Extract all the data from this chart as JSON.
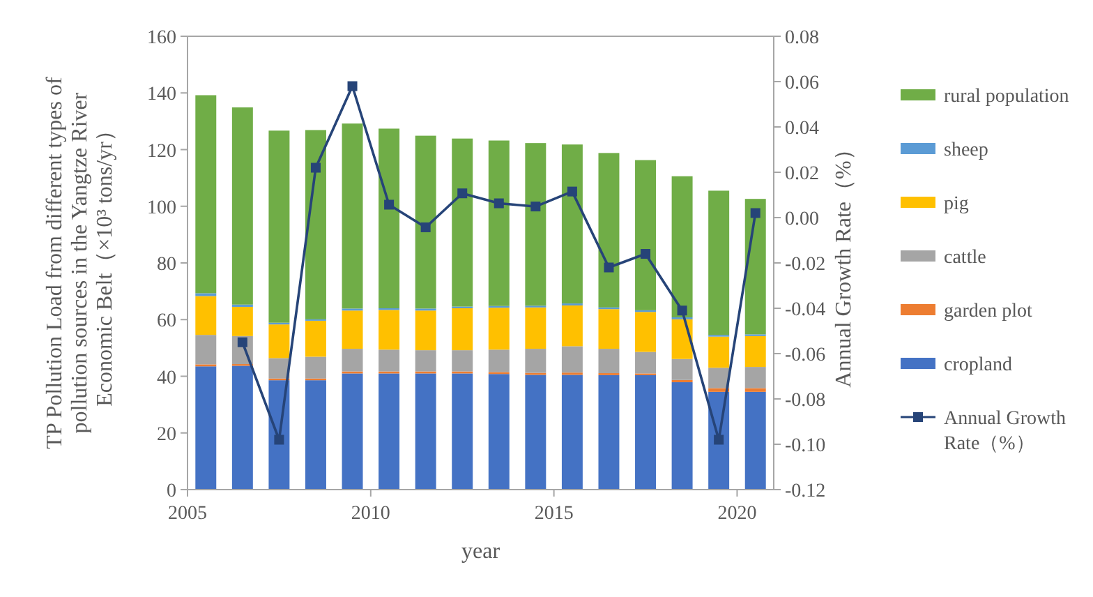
{
  "chart_data": {
    "type": "bar",
    "stacked": true,
    "xlabel": "year",
    "ylabel": "TP Pollution Load from different types of pollution sources in the Yangtze River Economic Belt（×10³ tons/yr）",
    "y2label": "Annual Growth Rate（%）",
    "x": [
      2005.5,
      2006.5,
      2007.5,
      2008.5,
      2009.5,
      2010.5,
      2011.5,
      2012.5,
      2013.5,
      2014.5,
      2015.5,
      2016.5,
      2017.5,
      2018.5,
      2019.5,
      2020.5
    ],
    "xlim": [
      2005,
      2021
    ],
    "xticks": [
      2005,
      2010,
      2015,
      2020
    ],
    "ylim": [
      0,
      160
    ],
    "yticks": [
      0,
      20,
      40,
      60,
      80,
      100,
      120,
      140,
      160
    ],
    "y2lim": [
      -0.12,
      0.08
    ],
    "y2ticks": [
      -0.12,
      {
        "value": -0.1,
        "label": "-0.10"
      },
      -0.08,
      -0.06,
      -0.04,
      -0.02,
      {
        "value": 0,
        "label": "0.00"
      },
      0.02,
      0.04,
      0.06,
      0.08
    ],
    "legend": "right",
    "grid": false,
    "series": [
      {
        "name": "cropland",
        "color": "#4472c4",
        "values": [
          43.5,
          43.7,
          38.6,
          38.6,
          41.0,
          41.0,
          41.0,
          41.0,
          40.8,
          40.5,
          40.5,
          40.4,
          40.4,
          37.9,
          34.5,
          34.5
        ]
      },
      {
        "name": "garden plot",
        "color": "#ed7d31",
        "values": [
          0.7,
          0.6,
          0.6,
          0.6,
          0.7,
          0.7,
          0.7,
          0.7,
          0.7,
          0.7,
          0.8,
          0.7,
          0.6,
          0.8,
          1.3,
          1.3
        ]
      },
      {
        "name": "cattle",
        "color": "#a5a5a5",
        "values": [
          10.4,
          9.9,
          7.2,
          7.7,
          8.0,
          7.7,
          7.5,
          7.5,
          7.9,
          8.5,
          9.3,
          8.6,
          7.6,
          7.4,
          7.2,
          7.5
        ]
      },
      {
        "name": "pig",
        "color": "#ffc000",
        "values": [
          13.7,
          10.3,
          11.9,
          12.7,
          13.5,
          14.0,
          14.0,
          14.8,
          14.8,
          14.6,
          14.4,
          14.0,
          14.1,
          14.0,
          11.0,
          10.9
        ]
      },
      {
        "name": "sheep",
        "color": "#5b9bd5",
        "values": [
          1.0,
          0.8,
          0.6,
          0.5,
          0.7,
          0.6,
          0.7,
          0.6,
          0.6,
          0.6,
          0.7,
          0.6,
          0.6,
          0.7,
          0.6,
          0.6
        ]
      },
      {
        "name": "rural population",
        "color": "#70ad47",
        "values": [
          69.9,
          69.6,
          67.8,
          66.8,
          65.3,
          63.4,
          61.0,
          59.3,
          58.4,
          57.4,
          56.1,
          54.5,
          53.0,
          49.8,
          50.9,
          47.8
        ]
      },
      {
        "name": "Annual Growth Rate（%）",
        "type": "line",
        "axis": "y2",
        "color": "#264478",
        "marker": "square",
        "line_style": "solid",
        "values": [
          null,
          -0.055,
          -0.098,
          0.022,
          0.058,
          0.0057,
          -0.0043,
          0.0107,
          0.0063,
          0.0049,
          0.0115,
          -0.022,
          -0.016,
          -0.041,
          -0.098,
          0.002
        ]
      }
    ]
  }
}
